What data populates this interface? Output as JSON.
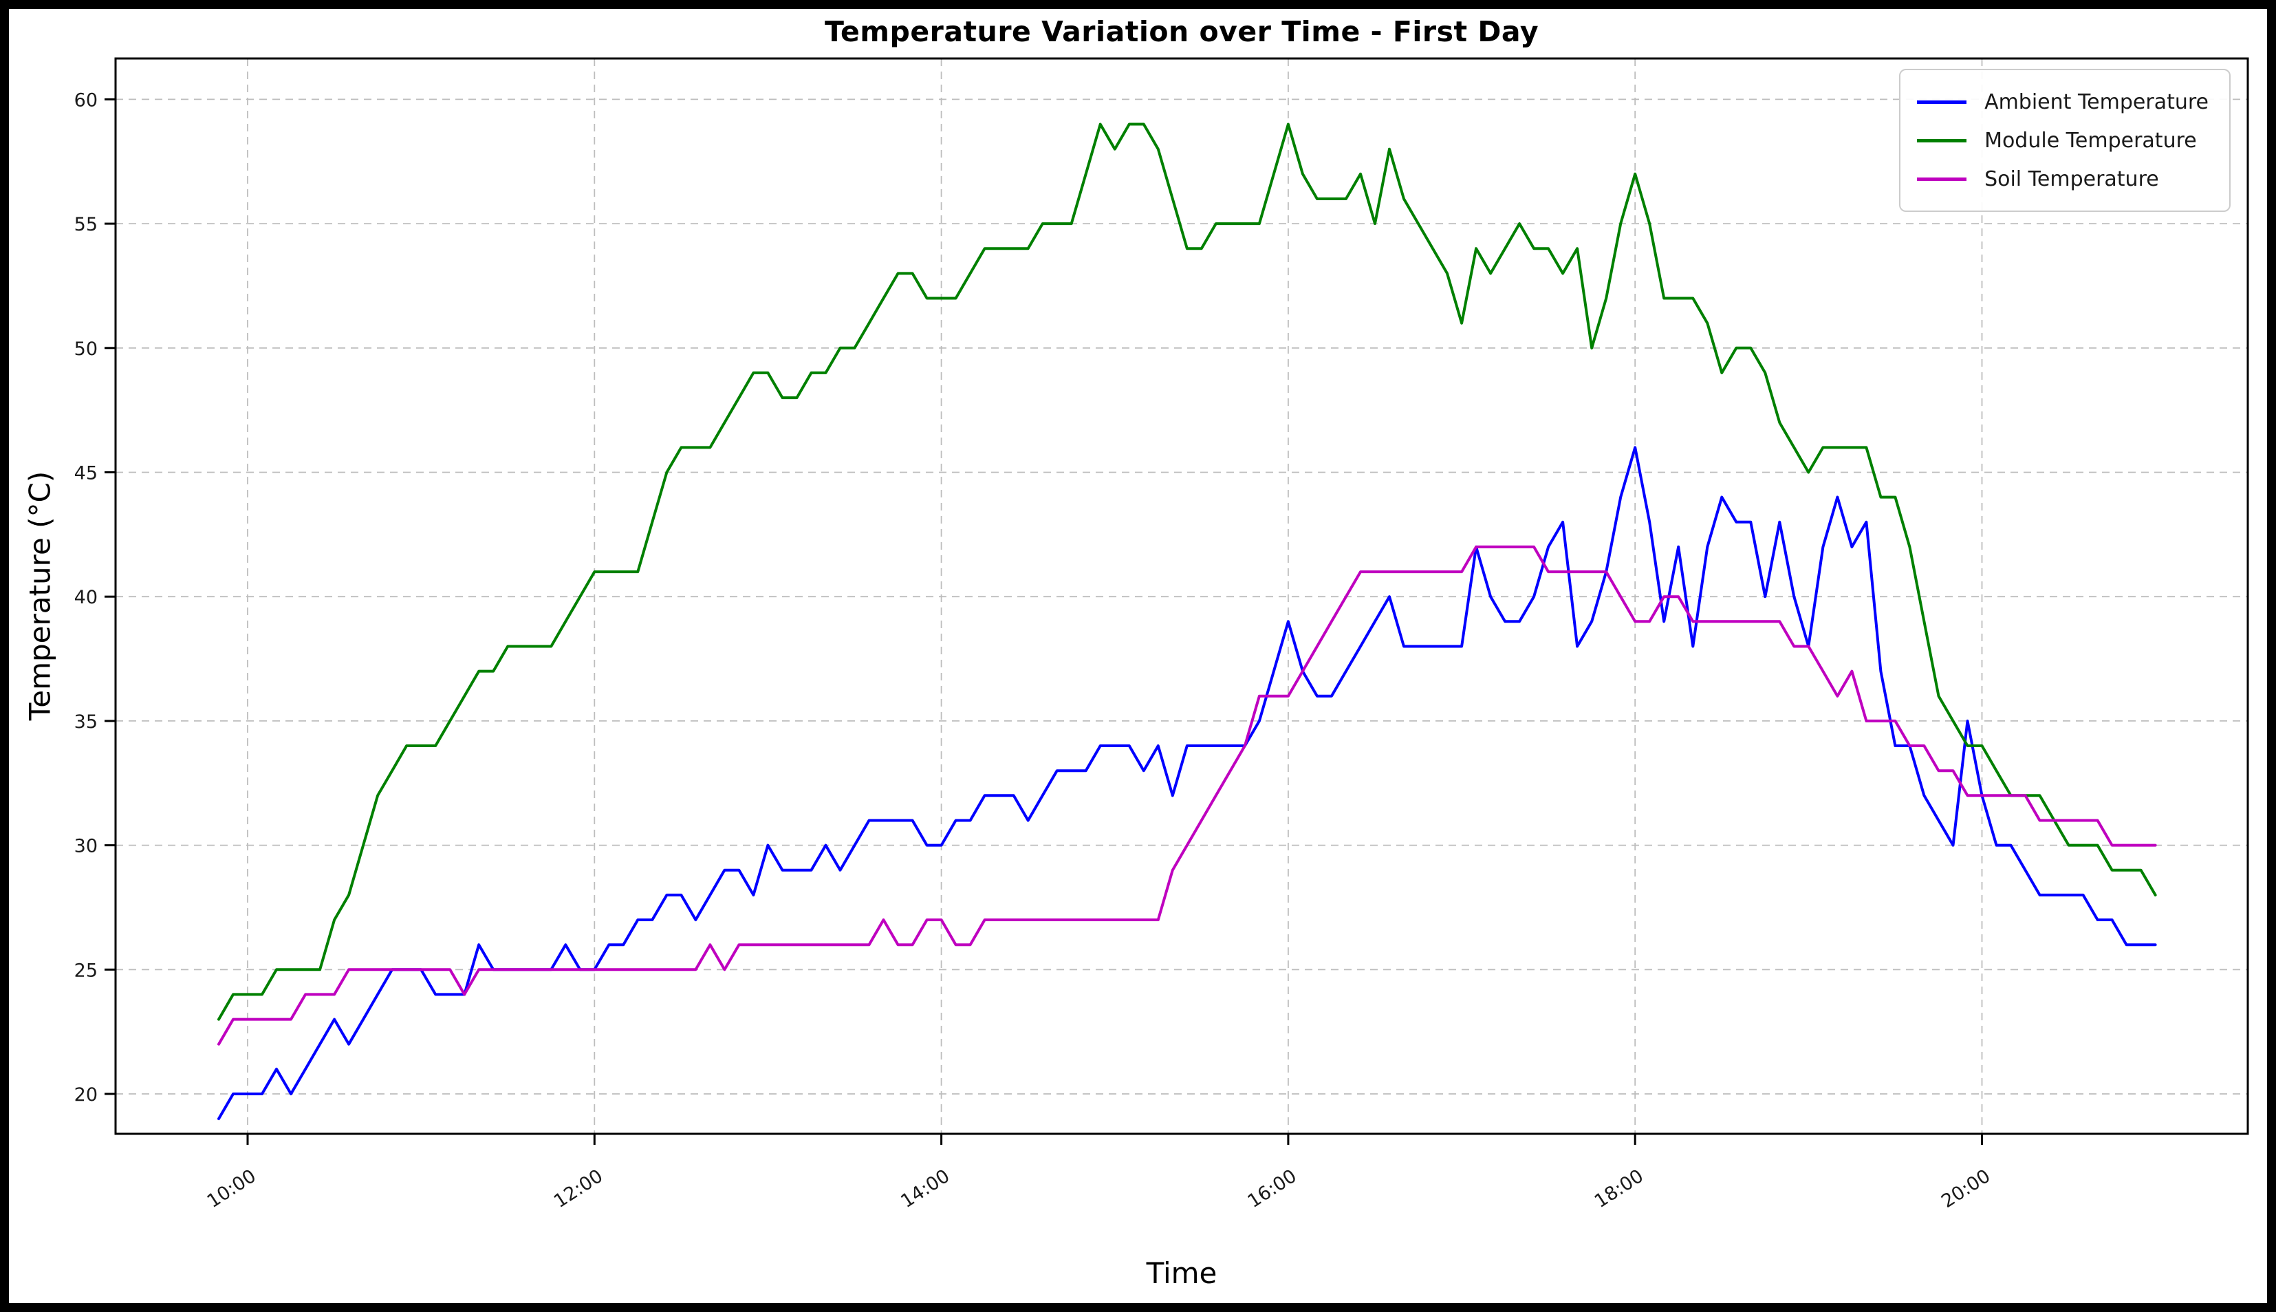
{
  "figure": {
    "background": "#ffffff",
    "frame_color": "#000000"
  },
  "chart_data": {
    "type": "line",
    "title": "Temperature Variation over Time - First Day",
    "xlabel": "Time",
    "ylabel": "Temperature (°C)",
    "grid": "dashed",
    "legend_position": "upper right",
    "xtick_labels": [
      "10:00",
      "12:00",
      "14:00",
      "16:00",
      "18:00",
      "20:00"
    ],
    "ytick_labels": [
      20,
      25,
      30,
      35,
      40,
      45,
      50,
      55,
      60
    ],
    "ylim": [
      19.1,
      61.9
    ],
    "x": [
      "09:50",
      "09:55",
      "10:00",
      "10:05",
      "10:10",
      "10:15",
      "10:20",
      "10:25",
      "10:30",
      "10:35",
      "10:40",
      "10:45",
      "10:50",
      "10:55",
      "11:00",
      "11:05",
      "11:10",
      "11:15",
      "11:20",
      "11:25",
      "11:30",
      "11:35",
      "11:40",
      "11:45",
      "11:50",
      "11:55",
      "12:00",
      "12:05",
      "12:10",
      "12:15",
      "12:20",
      "12:25",
      "12:30",
      "12:35",
      "12:40",
      "12:45",
      "12:50",
      "12:55",
      "13:00",
      "13:05",
      "13:10",
      "13:15",
      "13:20",
      "13:25",
      "13:30",
      "13:35",
      "13:40",
      "13:45",
      "13:50",
      "13:55",
      "14:00",
      "14:05",
      "14:10",
      "14:15",
      "14:20",
      "14:25",
      "14:30",
      "14:35",
      "14:40",
      "14:45",
      "14:50",
      "14:55",
      "15:00",
      "15:05",
      "15:10",
      "15:15",
      "15:20",
      "15:25",
      "15:30",
      "15:35",
      "15:40",
      "15:45",
      "15:50",
      "15:55",
      "16:00",
      "16:05",
      "16:10",
      "16:15",
      "16:20",
      "16:25",
      "16:30",
      "16:35",
      "16:40",
      "16:45",
      "16:50",
      "16:55",
      "17:00",
      "17:05",
      "17:10",
      "17:15",
      "17:20",
      "17:25",
      "17:30",
      "17:35",
      "17:40",
      "17:45",
      "17:50",
      "17:55",
      "18:00",
      "18:05",
      "18:10",
      "18:15",
      "18:20",
      "18:25",
      "18:30",
      "18:35",
      "18:40",
      "18:45",
      "18:50",
      "18:55",
      "19:00",
      "19:05",
      "19:10",
      "19:15",
      "19:20",
      "19:25",
      "19:30",
      "19:35",
      "19:40",
      "19:45",
      "19:50",
      "19:55",
      "20:00",
      "20:05",
      "20:10",
      "20:15",
      "20:20",
      "20:25",
      "20:30",
      "20:35",
      "20:40",
      "20:45",
      "20:50",
      "20:55",
      "21:00"
    ],
    "series": [
      {
        "name": "Ambient Temperature",
        "color": "#0000ff",
        "values": [
          19,
          20,
          20,
          20,
          21,
          20,
          21,
          22,
          23,
          22,
          23,
          24,
          25,
          25,
          25,
          24,
          24,
          24,
          26,
          25,
          25,
          25,
          25,
          25,
          26,
          25,
          25,
          26,
          26,
          27,
          27,
          28,
          28,
          27,
          28,
          29,
          29,
          28,
          30,
          29,
          29,
          29,
          30,
          29,
          30,
          31,
          31,
          31,
          31,
          30,
          30,
          31,
          31,
          32,
          32,
          32,
          31,
          32,
          33,
          33,
          33,
          34,
          34,
          34,
          33,
          34,
          32,
          34,
          34,
          34,
          34,
          34,
          35,
          37,
          39,
          37,
          36,
          36,
          37,
          38,
          39,
          40,
          38,
          38,
          38,
          38,
          38,
          42,
          40,
          39,
          39,
          40,
          42,
          43,
          38,
          39,
          41,
          44,
          46,
          43,
          39,
          42,
          38,
          42,
          44,
          43,
          43,
          40,
          43,
          40,
          38,
          42,
          44,
          42,
          43,
          37,
          34,
          34,
          32,
          31,
          30,
          35,
          32,
          30,
          30,
          29,
          28,
          28,
          28,
          28,
          27,
          27,
          26,
          26,
          26
        ]
      },
      {
        "name": "Module Temperature",
        "color": "#008000",
        "values": [
          23,
          24,
          24,
          24,
          25,
          25,
          25,
          25,
          27,
          28,
          30,
          32,
          33,
          34,
          34,
          34,
          35,
          36,
          37,
          37,
          38,
          38,
          38,
          38,
          39,
          40,
          41,
          41,
          41,
          41,
          43,
          45,
          46,
          46,
          46,
          47,
          48,
          49,
          49,
          48,
          48,
          49,
          49,
          50,
          50,
          51,
          52,
          53,
          53,
          52,
          52,
          52,
          53,
          54,
          54,
          54,
          54,
          55,
          55,
          55,
          57,
          59,
          58,
          59,
          59,
          58,
          56,
          54,
          54,
          55,
          55,
          55,
          55,
          57,
          59,
          57,
          56,
          56,
          56,
          57,
          55,
          58,
          56,
          55,
          54,
          53,
          51,
          54,
          53,
          54,
          55,
          54,
          54,
          53,
          54,
          50,
          52,
          55,
          57,
          55,
          52,
          52,
          52,
          51,
          49,
          50,
          50,
          49,
          47,
          46,
          45,
          46,
          46,
          46,
          46,
          44,
          44,
          42,
          39,
          36,
          35,
          34,
          34,
          33,
          32,
          32,
          32,
          31,
          30,
          30,
          30,
          29,
          29,
          29,
          28
        ]
      },
      {
        "name": "Soil Temperature",
        "color": "#bf00bf",
        "values": [
          22,
          23,
          23,
          23,
          23,
          23,
          24,
          24,
          24,
          25,
          25,
          25,
          25,
          25,
          25,
          25,
          25,
          24,
          25,
          25,
          25,
          25,
          25,
          25,
          25,
          25,
          25,
          25,
          25,
          25,
          25,
          25,
          25,
          25,
          26,
          25,
          26,
          26,
          26,
          26,
          26,
          26,
          26,
          26,
          26,
          26,
          27,
          26,
          26,
          27,
          27,
          26,
          26,
          27,
          27,
          27,
          27,
          27,
          27,
          27,
          27,
          27,
          27,
          27,
          27,
          27,
          29,
          30,
          31,
          32,
          33,
          34,
          36,
          36,
          36,
          37,
          38,
          39,
          40,
          41,
          41,
          41,
          41,
          41,
          41,
          41,
          41,
          42,
          42,
          42,
          42,
          42,
          41,
          41,
          41,
          41,
          41,
          40,
          39,
          39,
          40,
          40,
          39,
          39,
          39,
          39,
          39,
          39,
          39,
          38,
          38,
          37,
          36,
          37,
          35,
          35,
          35,
          34,
          34,
          33,
          33,
          32,
          32,
          32,
          32,
          32,
          31,
          31,
          31,
          31,
          31,
          30,
          30,
          30,
          30
        ]
      }
    ]
  }
}
